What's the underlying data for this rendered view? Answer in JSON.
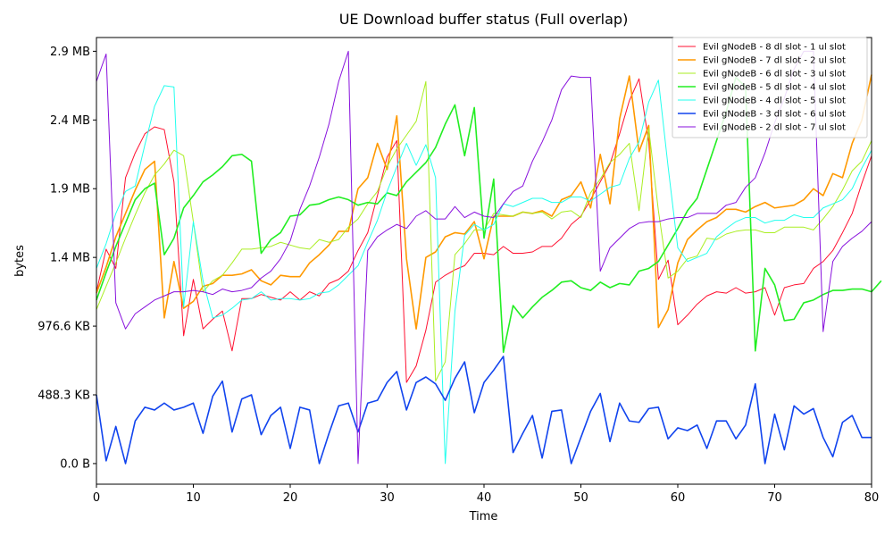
{
  "chart_data": {
    "type": "line",
    "title": "UE Download buffer status (Full overlap)",
    "xlabel": "Time",
    "ylabel": "bytes",
    "xlim": [
      0,
      80
    ],
    "ylim": [
      -150000,
      3100000
    ],
    "grid": false,
    "legend_position": "top-right",
    "x_ticks": [
      0,
      10,
      20,
      30,
      40,
      50,
      60,
      70,
      80
    ],
    "y_ticks": [
      {
        "value": 0,
        "label": "0.0 B"
      },
      {
        "value": 500000,
        "label": "488.3 KB"
      },
      {
        "value": 1000000,
        "label": "976.6 KB"
      },
      {
        "value": 1500000,
        "label": "1.4 MB"
      },
      {
        "value": 2000000,
        "label": "1.9 MB"
      },
      {
        "value": 2500000,
        "label": "2.4 MB"
      },
      {
        "value": 3000000,
        "label": "2.9 MB"
      }
    ],
    "series": [
      {
        "name": "Evil gNodeB - 8 dl slot - 1 ul slot",
        "color": "#ff1030",
        "values": [
          1250000,
          1560000,
          1420000,
          2080000,
          2260000,
          2400000,
          2450000,
          2430000,
          2050000,
          930000,
          1340000,
          980000,
          1050000,
          1110000,
          820000,
          1200000,
          1200000,
          1230000,
          1210000,
          1190000,
          1250000,
          1190000,
          1250000,
          1220000,
          1310000,
          1340000,
          1400000,
          1550000,
          1680000,
          1950000,
          2230000,
          2350000,
          590000,
          710000,
          970000,
          1320000,
          1370000,
          1410000,
          1440000,
          1530000,
          1530000,
          1520000,
          1580000,
          1530000,
          1530000,
          1540000,
          1580000,
          1580000,
          1640000,
          1740000,
          1800000,
          1920000,
          2050000,
          2180000,
          2400000,
          2640000,
          2800000,
          2340000,
          1340000,
          1480000,
          1010000,
          1080000,
          1160000,
          1220000,
          1250000,
          1240000,
          1280000,
          1240000,
          1250000,
          1280000,
          1080000,
          1280000,
          1300000,
          1310000,
          1420000,
          1470000,
          1550000,
          1680000,
          1820000,
          2040000,
          2240000
        ]
      },
      {
        "name": "Evil gNodeB - 7 dl slot - 2 ul slot",
        "color": "#ff9900",
        "values": [
          1240000,
          1430000,
          1650000,
          1820000,
          1990000,
          2140000,
          2200000,
          1060000,
          1470000,
          1130000,
          1180000,
          1290000,
          1310000,
          1370000,
          1370000,
          1380000,
          1410000,
          1330000,
          1300000,
          1370000,
          1360000,
          1360000,
          1460000,
          1520000,
          1590000,
          1690000,
          1690000,
          2000000,
          2080000,
          2330000,
          2140000,
          2530000,
          1490000,
          980000,
          1500000,
          1540000,
          1650000,
          1680000,
          1670000,
          1760000,
          1490000,
          1800000,
          1800000,
          1800000,
          1830000,
          1820000,
          1840000,
          1800000,
          1920000,
          1950000,
          2050000,
          1860000,
          2250000,
          1890000,
          2510000,
          2820000,
          2270000,
          2460000,
          990000,
          1120000,
          1460000,
          1630000,
          1700000,
          1760000,
          1790000,
          1850000,
          1850000,
          1830000,
          1870000,
          1900000,
          1860000,
          1870000,
          1880000,
          1920000,
          2000000,
          1950000,
          2110000,
          2080000,
          2330000,
          2500000,
          2830000
        ]
      },
      {
        "name": "Evil gNodeB - 6 dl slot - 3 ul slot",
        "color": "#aaee22",
        "values": [
          1120000,
          1290000,
          1460000,
          1640000,
          1810000,
          1970000,
          2100000,
          2180000,
          2280000,
          2240000,
          1760000,
          1250000,
          1330000,
          1370000,
          1460000,
          1560000,
          1560000,
          1570000,
          1580000,
          1610000,
          1590000,
          1570000,
          1560000,
          1630000,
          1610000,
          1630000,
          1720000,
          1780000,
          1890000,
          1980000,
          2160000,
          2290000,
          2390000,
          2490000,
          2780000,
          600000,
          740000,
          1520000,
          1600000,
          1700000,
          1700000,
          1820000,
          1810000,
          1800000,
          1830000,
          1820000,
          1830000,
          1780000,
          1830000,
          1840000,
          1790000,
          1970000,
          2070000,
          2190000,
          2250000,
          2330000,
          1840000,
          2440000,
          1840000,
          1350000,
          1400000,
          1490000,
          1510000,
          1640000,
          1630000,
          1670000,
          1690000,
          1700000,
          1700000,
          1680000,
          1680000,
          1720000,
          1720000,
          1720000,
          1700000,
          1780000,
          1870000,
          1990000,
          2130000,
          2200000,
          2350000
        ]
      },
      {
        "name": "Evil gNodeB - 5 dl slot - 4 ul slot",
        "color": "#22ee22",
        "values": [
          1190000,
          1390000,
          1580000,
          1750000,
          1920000,
          2000000,
          2040000,
          1520000,
          1640000,
          1860000,
          1950000,
          2050000,
          2100000,
          2160000,
          2240000,
          2250000,
          2200000,
          1530000,
          1630000,
          1680000,
          1800000,
          1810000,
          1880000,
          1890000,
          1920000,
          1940000,
          1920000,
          1880000,
          1900000,
          1890000,
          1970000,
          1950000,
          2050000,
          2120000,
          2190000,
          2300000,
          2470000,
          2610000,
          2240000,
          2590000,
          1640000,
          2070000,
          810000,
          1150000,
          1060000,
          1140000,
          1210000,
          1260000,
          1320000,
          1330000,
          1280000,
          1260000,
          1320000,
          1280000,
          1310000,
          1300000,
          1400000,
          1420000,
          1470000,
          1590000,
          1710000,
          1840000,
          1930000,
          2140000,
          2350000,
          2560000,
          2810000,
          2740000,
          820000,
          1420000,
          1300000,
          1040000,
          1050000,
          1170000,
          1190000,
          1230000,
          1260000,
          1260000,
          1270000,
          1270000,
          1250000,
          1330000
        ]
      },
      {
        "name": "Evil gNodeB - 4 dl slot - 5 ul slot",
        "color": "#22ffee",
        "values": [
          1420000,
          1600000,
          1820000,
          1980000,
          2020000,
          2320000,
          2600000,
          2750000,
          2740000,
          1140000,
          1760000,
          1330000,
          1060000,
          1080000,
          1130000,
          1190000,
          1200000,
          1250000,
          1190000,
          1200000,
          1200000,
          1190000,
          1200000,
          1240000,
          1250000,
          1300000,
          1370000,
          1440000,
          1610000,
          1770000,
          1980000,
          2160000,
          2330000,
          2170000,
          2320000,
          2080000,
          0,
          1110000,
          1660000,
          1740000,
          1700000,
          1740000,
          1890000,
          1870000,
          1900000,
          1930000,
          1930000,
          1900000,
          1900000,
          1940000,
          1940000,
          1910000,
          1960000,
          2010000,
          2030000,
          2220000,
          2340000,
          2630000,
          2790000,
          2160000,
          1570000,
          1470000,
          1500000,
          1530000,
          1650000,
          1710000,
          1760000,
          1790000,
          1790000,
          1750000,
          1770000,
          1770000,
          1810000,
          1790000,
          1790000,
          1860000,
          1890000,
          1920000,
          2000000,
          2150000,
          2280000
        ]
      },
      {
        "name": "Evil gNodeB - 3 dl slot - 6 ul slot",
        "color": "#1144ee",
        "values": [
          500000,
          20000,
          270000,
          0,
          310000,
          410000,
          390000,
          440000,
          390000,
          410000,
          440000,
          220000,
          490000,
          600000,
          230000,
          470000,
          500000,
          210000,
          350000,
          410000,
          110000,
          410000,
          390000,
          0,
          220000,
          420000,
          440000,
          230000,
          440000,
          460000,
          590000,
          670000,
          390000,
          590000,
          630000,
          580000,
          460000,
          620000,
          740000,
          370000,
          590000,
          680000,
          780000,
          80000,
          220000,
          350000,
          40000,
          380000,
          390000,
          0,
          190000,
          380000,
          510000,
          160000,
          440000,
          310000,
          300000,
          400000,
          410000,
          180000,
          260000,
          240000,
          280000,
          110000,
          310000,
          310000,
          180000,
          280000,
          580000,
          0,
          360000,
          100000,
          420000,
          360000,
          400000,
          190000,
          50000,
          300000,
          350000,
          190000,
          190000
        ]
      },
      {
        "name": "Evil gNodeB - 2 dl slot - 7 ul slot",
        "color": "#8811dd",
        "values": [
          2780000,
          2980000,
          1170000,
          980000,
          1090000,
          1140000,
          1190000,
          1220000,
          1250000,
          1250000,
          1260000,
          1250000,
          1230000,
          1270000,
          1250000,
          1260000,
          1280000,
          1350000,
          1400000,
          1490000,
          1620000,
          1850000,
          2020000,
          2230000,
          2470000,
          2780000,
          3000000,
          0,
          1550000,
          1650000,
          1700000,
          1740000,
          1710000,
          1800000,
          1840000,
          1780000,
          1780000,
          1870000,
          1790000,
          1830000,
          1800000,
          1790000,
          1890000,
          1980000,
          2020000,
          2200000,
          2340000,
          2500000,
          2720000,
          2820000,
          2810000,
          2810000,
          1400000,
          1570000,
          1640000,
          1710000,
          1750000,
          1760000,
          1760000,
          1780000,
          1790000,
          1790000,
          1820000,
          1820000,
          1820000,
          1880000,
          1900000,
          2010000,
          2080000,
          2260000,
          2480000,
          2660000,
          2870000,
          3000000,
          3000000,
          960000,
          1470000,
          1580000,
          1640000,
          1690000,
          1760000
        ]
      }
    ]
  }
}
